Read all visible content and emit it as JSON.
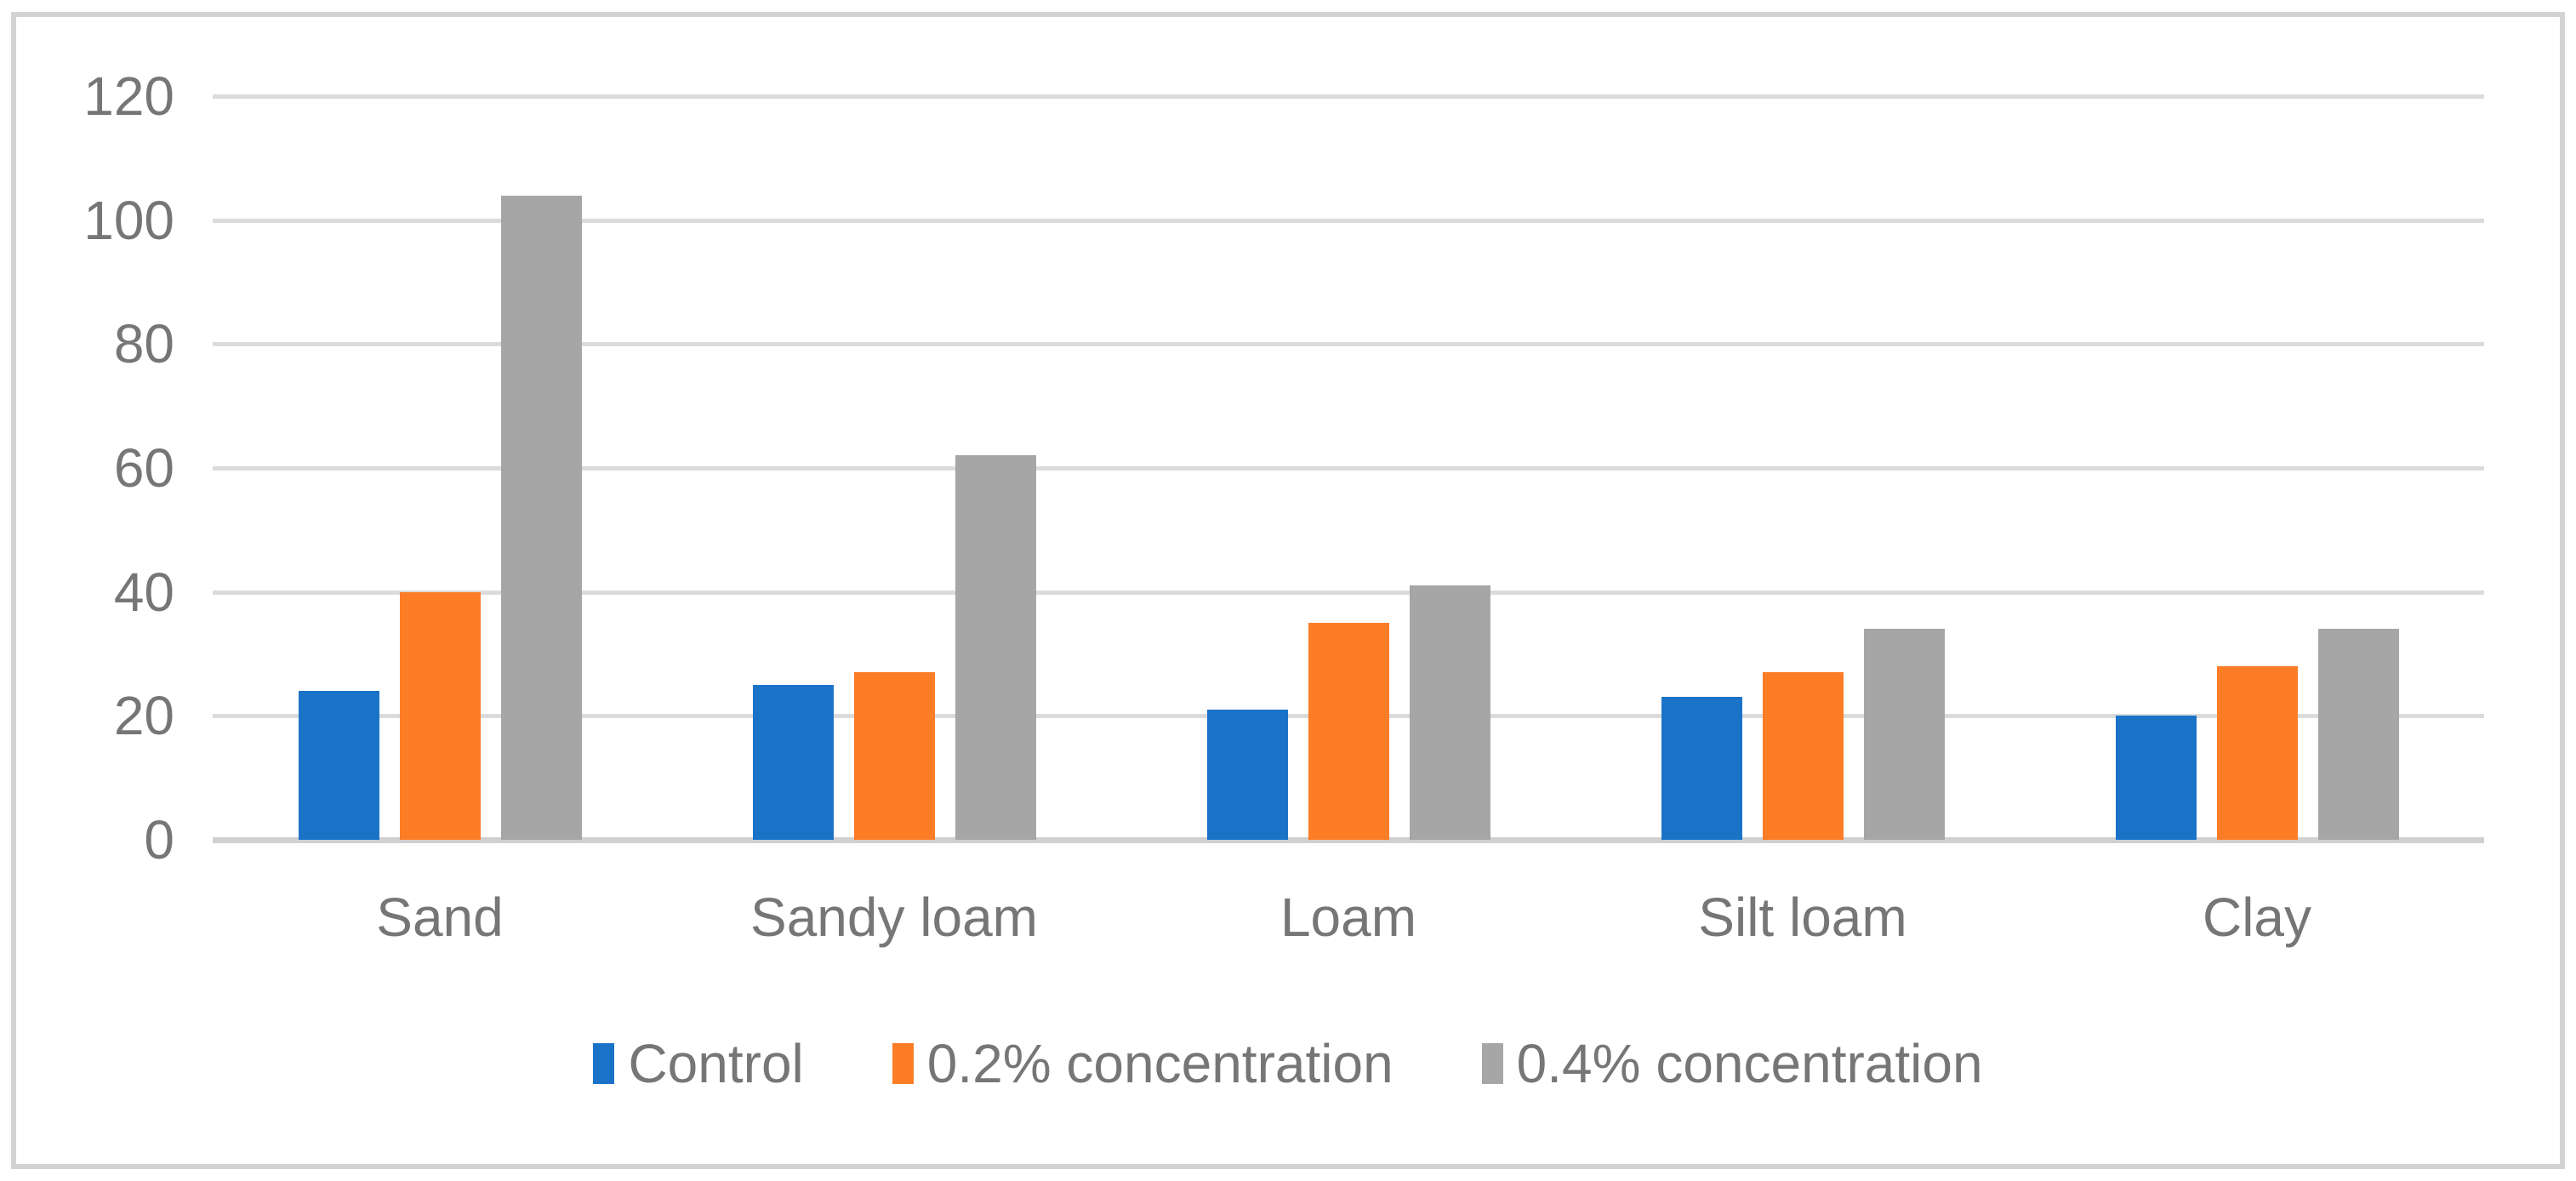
{
  "figure": {
    "background": "#FFFFFF",
    "border_color": "#D3D3D3"
  },
  "chart_data": {
    "type": "bar",
    "title": "",
    "xlabel": "",
    "ylabel": "",
    "categories": [
      "Sand",
      "Sandy loam",
      "Loam",
      "Silt loam",
      "Clay"
    ],
    "series": [
      {
        "name": "Control",
        "color": "#1B73C8",
        "values": [
          24,
          25,
          21,
          23,
          20
        ]
      },
      {
        "name": "0.2% concentration",
        "color": "#FC7D26",
        "values": [
          40,
          27,
          35,
          27,
          28
        ]
      },
      {
        "name": "0.4% concentration",
        "color": "#A6A6A6",
        "values": [
          104,
          62,
          41,
          34,
          34
        ]
      }
    ],
    "ylim": [
      0,
      120
    ],
    "yticks": [
      0,
      20,
      40,
      60,
      80,
      100,
      120
    ],
    "grid": "horizontal",
    "gridline_color": "#DBDBDB",
    "axis_line_color": "#D0D0D0",
    "text_color": "#767676",
    "legend_position": "bottom"
  }
}
